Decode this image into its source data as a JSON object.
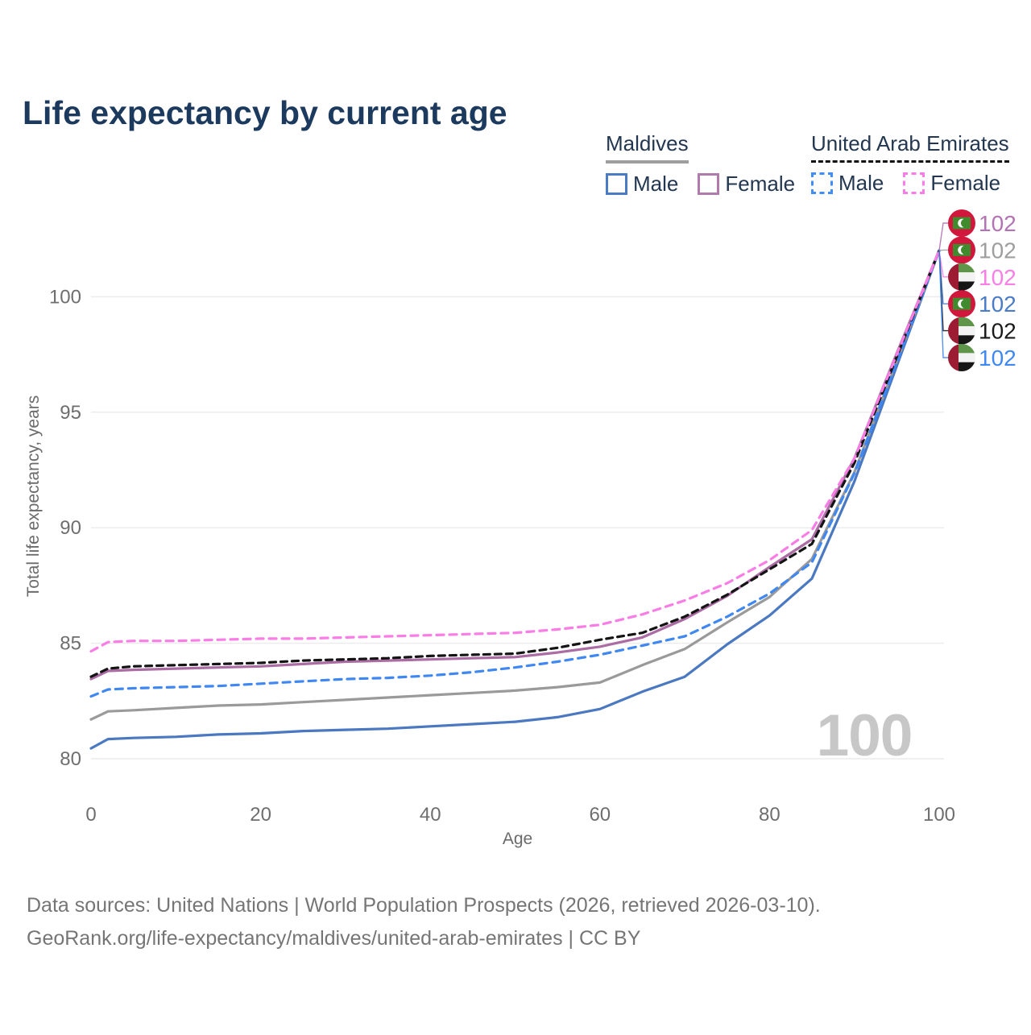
{
  "title": "Life expectancy by current age",
  "legend": {
    "groups": [
      {
        "label": "Maldives",
        "underline_style": "solid",
        "underline_color": "#9e9e9e",
        "items": [
          {
            "label": "Male",
            "color": "#4a7bc4",
            "dash": false
          },
          {
            "label": "Female",
            "color": "#b07aad",
            "dash": false
          }
        ]
      },
      {
        "label": "United Arab Emirates",
        "underline_style": "dashed",
        "underline_color": "#111111",
        "items": [
          {
            "label": "Male",
            "color": "#418ef4",
            "dash": true
          },
          {
            "label": "Female",
            "color": "#fb7be8",
            "dash": true
          }
        ]
      }
    ]
  },
  "chart_data": {
    "type": "line",
    "title": "Life expectancy by current age",
    "xlabel": "Age",
    "ylabel": "Total life expectancy, years",
    "xticks": [
      0,
      20,
      40,
      60,
      80,
      100
    ],
    "yticks": [
      80,
      85,
      90,
      95,
      100
    ],
    "xlim": [
      0,
      100
    ],
    "ylim": [
      79.5,
      102.5
    ],
    "grid": "horizontal",
    "watermark": "100",
    "legend_position": "top-right",
    "x": [
      0,
      2,
      5,
      10,
      15,
      20,
      25,
      30,
      35,
      40,
      45,
      50,
      55,
      60,
      65,
      70,
      75,
      80,
      85,
      90,
      95,
      100
    ],
    "series": [
      {
        "name": "Maldives Male",
        "color": "#4a78c1",
        "dash": "",
        "values": [
          80.45,
          80.85,
          80.9,
          80.95,
          81.05,
          81.1,
          81.2,
          81.25,
          81.3,
          81.4,
          81.5,
          81.6,
          81.8,
          82.15,
          82.9,
          83.55,
          84.95,
          86.2,
          87.8,
          92.0,
          97.0,
          102
        ]
      },
      {
        "name": "Maldives Both sexes",
        "color": "#9a9a9a",
        "dash": "",
        "values": [
          81.7,
          82.05,
          82.1,
          82.2,
          82.3,
          82.35,
          82.45,
          82.55,
          82.65,
          82.75,
          82.85,
          82.95,
          83.1,
          83.3,
          84.05,
          84.75,
          85.9,
          87.0,
          88.65,
          92.4,
          97.2,
          102
        ]
      },
      {
        "name": "Maldives Female",
        "color": "#ab6ba3",
        "dash": "",
        "values": [
          83.45,
          83.8,
          83.85,
          83.9,
          83.95,
          84.0,
          84.1,
          84.2,
          84.25,
          84.3,
          84.35,
          84.4,
          84.6,
          84.85,
          85.25,
          86.05,
          87.05,
          88.3,
          89.5,
          93.0,
          97.55,
          102
        ]
      },
      {
        "name": "United Arab Emirates Male",
        "color": "#3f87f2",
        "dash": "9 7",
        "values": [
          82.7,
          83.0,
          83.05,
          83.1,
          83.15,
          83.25,
          83.35,
          83.45,
          83.5,
          83.6,
          83.75,
          83.95,
          84.2,
          84.5,
          84.9,
          85.3,
          86.15,
          87.15,
          88.5,
          92.35,
          97.15,
          102
        ]
      },
      {
        "name": "United Arab Emirates Both sexes",
        "color": "#141414",
        "dash": "8 6",
        "values": [
          83.55,
          83.9,
          84.0,
          84.05,
          84.1,
          84.15,
          84.25,
          84.3,
          84.35,
          84.45,
          84.5,
          84.55,
          84.8,
          85.15,
          85.45,
          86.15,
          87.1,
          88.2,
          89.3,
          92.8,
          97.4,
          102
        ]
      },
      {
        "name": "United Arab Emirates Female",
        "color": "#fa7de6",
        "dash": "9 7",
        "values": [
          84.65,
          85.05,
          85.1,
          85.1,
          85.15,
          85.2,
          85.2,
          85.25,
          85.3,
          85.35,
          85.4,
          85.45,
          85.6,
          85.8,
          86.25,
          86.85,
          87.6,
          88.6,
          89.9,
          93.0,
          97.5,
          102
        ]
      }
    ],
    "end_labels": [
      {
        "series": "Maldives Female",
        "flag": "maldives",
        "value": "102",
        "color": "#b273b4"
      },
      {
        "series": "Maldives Both sexes",
        "flag": "maldives",
        "value": "102",
        "color": "#9e9e9e"
      },
      {
        "series": "United Arab Emirates Female",
        "flag": "uae",
        "value": "102",
        "color": "#f97ee6"
      },
      {
        "series": "Maldives Male",
        "flag": "maldives",
        "value": "102",
        "color": "#4a7cc7"
      },
      {
        "series": "United Arab Emirates Both sexes",
        "flag": "uae",
        "value": "102",
        "color": "#1a1a1a"
      },
      {
        "series": "United Arab Emirates Male",
        "flag": "uae",
        "value": "102",
        "color": "#3f87f2"
      }
    ]
  },
  "footer": {
    "line1": "Data sources: United Nations | World Population Prospects (2026, retrieved 2026-03-10).",
    "line2": "GeoRank.org/life-expectancy/maldives/united-arab-emirates | CC BY"
  }
}
